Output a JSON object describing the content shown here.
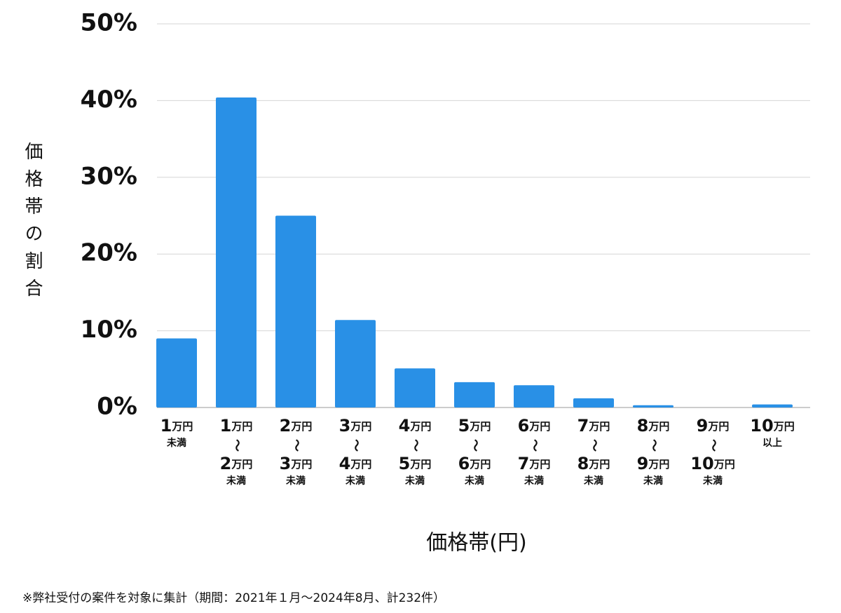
{
  "chart_data": {
    "type": "bar",
    "y_axis_label": "価格帯の割合",
    "x_axis_label": "価格帯(円)",
    "footnote": "※弊社受付の案件を対象に集計（期間：2021年１月～2024年8月、計232件）",
    "categories": [
      [
        "1万円",
        "未満"
      ],
      [
        "1万円",
        "〜",
        "2万円",
        "未満"
      ],
      [
        "2万円",
        "〜",
        "3万円",
        "未満"
      ],
      [
        "3万円",
        "〜",
        "4万円",
        "未満"
      ],
      [
        "4万円",
        "〜",
        "5万円",
        "未満"
      ],
      [
        "5万円",
        "〜",
        "6万円",
        "未満"
      ],
      [
        "6万円",
        "〜",
        "7万円",
        "未満"
      ],
      [
        "7万円",
        "〜",
        "8万円",
        "未満"
      ],
      [
        "8万円",
        "〜",
        "9万円",
        "未満"
      ],
      [
        "9万円",
        "〜",
        "10万円",
        "未満"
      ],
      [
        "10万円",
        "以上"
      ]
    ],
    "values": [
      9.0,
      40.4,
      25.0,
      11.4,
      5.1,
      3.3,
      2.9,
      1.2,
      0.3,
      0,
      0.4
    ],
    "color": "#2990e6",
    "ylim": [
      0,
      50
    ],
    "yticks": [
      {
        "value": 0,
        "label": "0%"
      },
      {
        "value": 10,
        "label": "10%"
      },
      {
        "value": 20,
        "label": "20%"
      },
      {
        "value": 30,
        "label": "30%"
      },
      {
        "value": 40,
        "label": "40%"
      },
      {
        "value": 50,
        "label": "50%"
      }
    ],
    "grid": true
  }
}
